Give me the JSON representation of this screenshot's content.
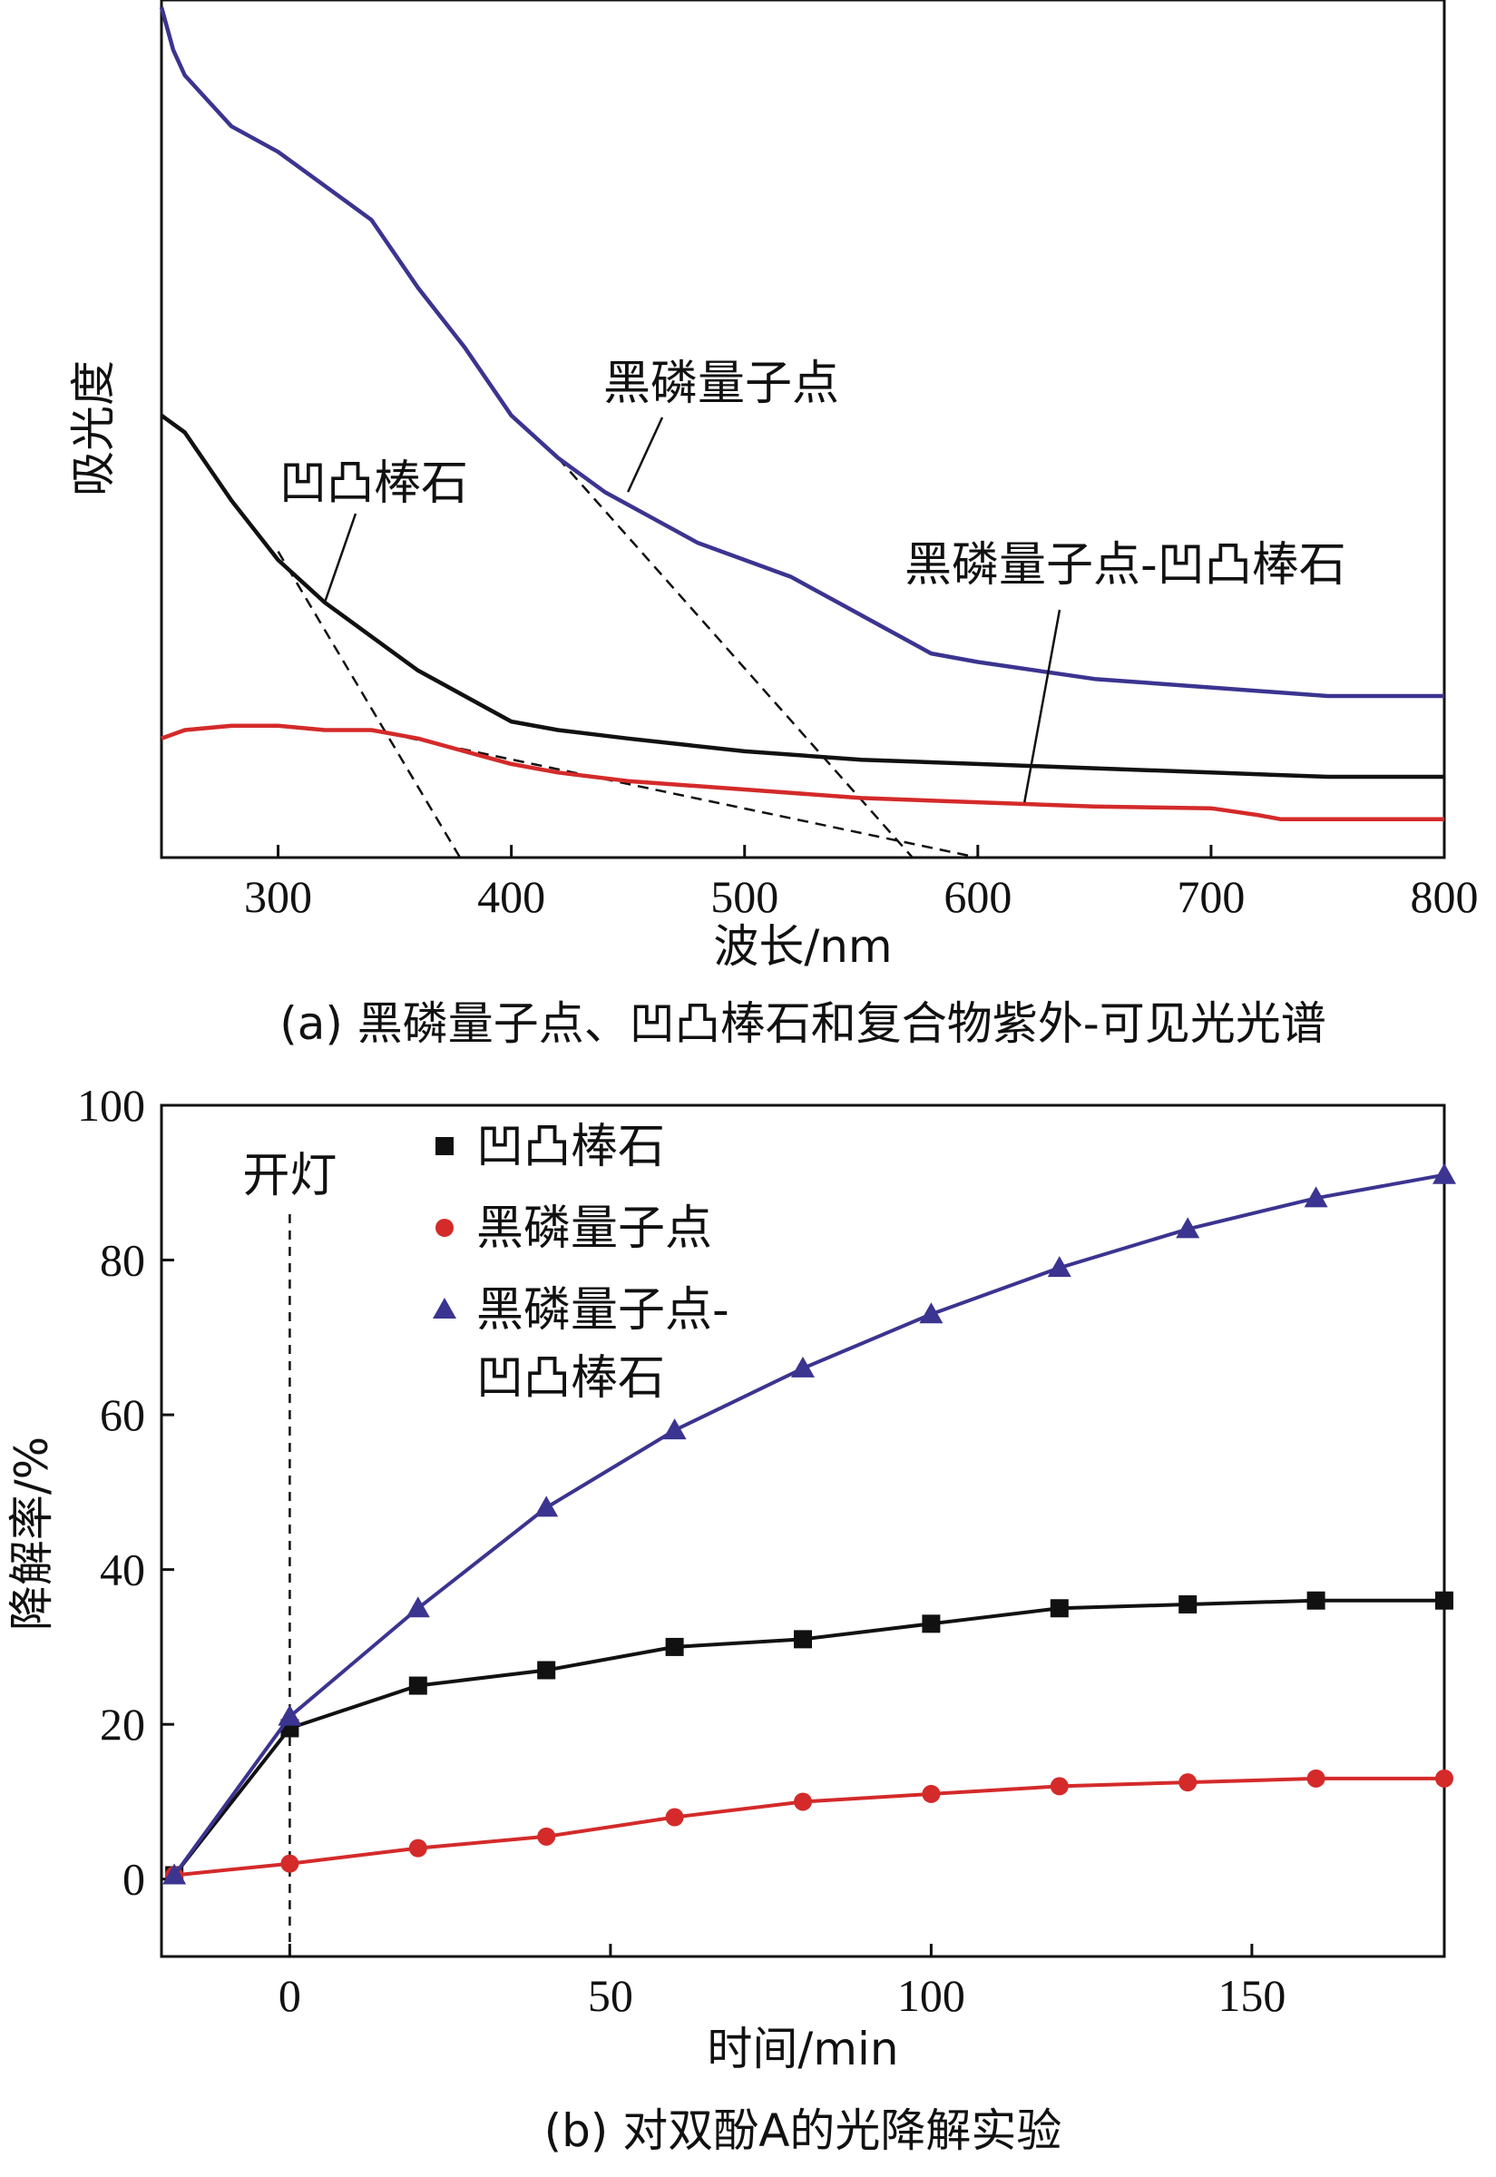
{
  "chart_data": [
    {
      "type": "line",
      "panel": "a",
      "caption": "(a) 黑磷量子点、凹凸棒石和复合物紫外-可见光光谱",
      "xlabel": "波长/nm",
      "ylabel": "吸光度",
      "xlim": [
        250,
        800
      ],
      "ylim": [
        0,
        1
      ],
      "xticks": [
        300,
        400,
        500,
        600,
        700,
        800
      ],
      "grid": false,
      "colors": {
        "black": "#111111",
        "red": "#d42a2a",
        "blue": "#3b3490"
      },
      "series": [
        {
          "name": "黑磷量子点",
          "color": "#3b3490",
          "x": [
            250,
            255,
            260,
            270,
            280,
            300,
            320,
            340,
            360,
            380,
            400,
            420,
            440,
            460,
            480,
            500,
            520,
            540,
            560,
            580,
            600,
            650,
            700,
            750,
            800
          ],
          "y": [
            1.0,
            0.95,
            0.92,
            0.89,
            0.86,
            0.83,
            0.79,
            0.75,
            0.67,
            0.6,
            0.52,
            0.47,
            0.43,
            0.4,
            0.37,
            0.35,
            0.33,
            0.3,
            0.27,
            0.24,
            0.23,
            0.21,
            0.2,
            0.19,
            0.19
          ]
        },
        {
          "name": "凹凸棒石",
          "color": "#111111",
          "x": [
            250,
            260,
            270,
            280,
            300,
            320,
            340,
            360,
            380,
            400,
            420,
            450,
            500,
            550,
            600,
            650,
            700,
            750,
            800
          ],
          "y": [
            0.52,
            0.5,
            0.46,
            0.42,
            0.35,
            0.3,
            0.26,
            0.22,
            0.19,
            0.16,
            0.15,
            0.14,
            0.125,
            0.115,
            0.11,
            0.105,
            0.1,
            0.095,
            0.095
          ]
        },
        {
          "name": "黑磷量子点-凹凸棒石",
          "color": "#d42a2a",
          "x": [
            250,
            260,
            280,
            300,
            320,
            340,
            360,
            380,
            400,
            420,
            450,
            500,
            550,
            600,
            650,
            700,
            720,
            730,
            750,
            800
          ],
          "y": [
            0.14,
            0.15,
            0.155,
            0.155,
            0.15,
            0.15,
            0.14,
            0.125,
            0.11,
            0.1,
            0.09,
            0.08,
            0.07,
            0.065,
            0.06,
            0.058,
            0.05,
            0.045,
            0.045,
            0.045
          ]
        }
      ],
      "tangents": [
        {
          "x": [
            300,
            378
          ],
          "y": [
            0.36,
            0.0
          ]
        },
        {
          "x": [
            420,
            572
          ],
          "y": [
            0.47,
            0.0
          ]
        },
        {
          "x": [
            340,
            600
          ],
          "y": [
            0.15,
            0.0
          ]
        }
      ],
      "annotations": [
        {
          "text": "黑磷量子点",
          "target_x": 450,
          "target_y": 0.43
        },
        {
          "text": "凹凸棒石",
          "target_x": 320,
          "target_y": 0.3
        },
        {
          "text": "黑磷量子点-凹凸棒石",
          "target_x": 620,
          "target_y": 0.065
        }
      ]
    },
    {
      "type": "line",
      "panel": "b",
      "caption": "(b) 对双酚A的光降解实验",
      "xlabel": "时间/min",
      "ylabel": "降解率/%",
      "xlim": [
        -20,
        180
      ],
      "ylim": [
        -10,
        100
      ],
      "xticks": [
        0,
        50,
        100,
        150
      ],
      "yticks": [
        0,
        20,
        40,
        60,
        80,
        100
      ],
      "grid": false,
      "legend_position": "top-left",
      "vline": {
        "x": 0,
        "label": "开灯"
      },
      "series": [
        {
          "name": "凹凸棒石",
          "marker": "square",
          "color": "#111111",
          "x": [
            -18,
            0,
            20,
            40,
            60,
            80,
            100,
            120,
            140,
            160,
            180
          ],
          "y": [
            0.5,
            19.5,
            25,
            27,
            30,
            31,
            33,
            35,
            35.5,
            36,
            36
          ]
        },
        {
          "name": "黑磷量子点",
          "marker": "circle",
          "color": "#d42a2a",
          "x": [
            -18,
            0,
            20,
            40,
            60,
            80,
            100,
            120,
            140,
            160,
            180
          ],
          "y": [
            0.5,
            2,
            4,
            5.5,
            8,
            10,
            11,
            12,
            12.5,
            13,
            13
          ]
        },
        {
          "name": "黑磷量子点-凹凸棒石",
          "legend_lines": [
            "黑磷量子点-",
            "凹凸棒石"
          ],
          "marker": "triangle",
          "color": "#3b3490",
          "x": [
            -18,
            0,
            20,
            40,
            60,
            80,
            100,
            120,
            140,
            160,
            180
          ],
          "y": [
            0.5,
            21,
            35,
            48,
            58,
            66,
            73,
            79,
            84,
            88,
            91
          ]
        }
      ]
    }
  ]
}
